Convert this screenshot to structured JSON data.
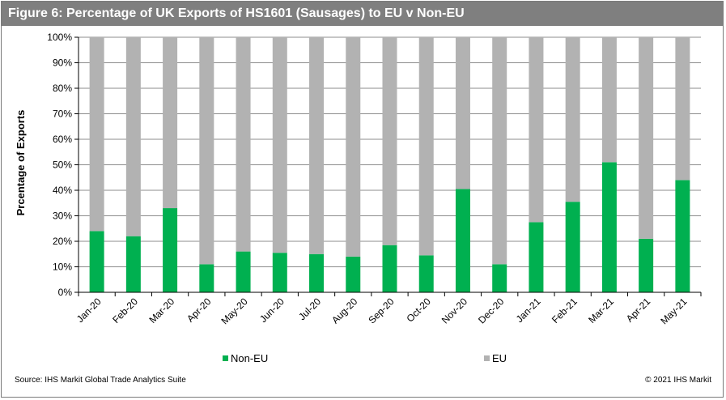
{
  "title": "Figure 6: Percentage of UK Exports of HS1601 (Sausages) to EU v Non-EU",
  "source": "Source: IHS Markit Global Trade Analytics Suite",
  "copyright": "© 2021 IHS Markit",
  "chart_data": {
    "type": "bar",
    "stacked": true,
    "ylabel": "Prcentage of Exports",
    "ylim": [
      0,
      100
    ],
    "yticks": [
      "0%",
      "10%",
      "20%",
      "30%",
      "40%",
      "50%",
      "60%",
      "70%",
      "80%",
      "90%",
      "100%"
    ],
    "categories": [
      "Jan-20",
      "Feb-20",
      "Mar-20",
      "Apr-20",
      "May-20",
      "Jun-20",
      "Jul-20",
      "Aug-20",
      "Sep-20",
      "Oct-20",
      "Nov-20",
      "Dec-20",
      "Jan-21",
      "Feb-21",
      "Mar-21",
      "Apr-21",
      "May-21"
    ],
    "series": [
      {
        "name": "Non-EU",
        "color": "#00b050",
        "values": [
          24,
          22,
          33,
          11,
          16,
          15.5,
          15,
          14,
          18.5,
          14.5,
          40.5,
          11,
          27.5,
          35.5,
          51,
          21,
          44
        ]
      },
      {
        "name": "EU",
        "color": "#b2b2b2",
        "values": [
          76,
          78,
          67,
          89,
          84,
          84.5,
          85,
          86,
          81.5,
          85.5,
          59.5,
          89,
          72.5,
          64.5,
          49,
          79,
          56
        ]
      }
    ],
    "grid": true,
    "legend_position": "bottom"
  }
}
